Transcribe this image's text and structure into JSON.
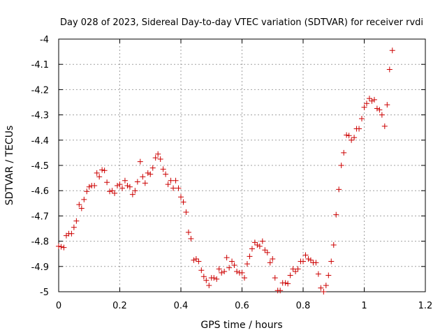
{
  "chart_data": {
    "type": "scatter",
    "title": "Day 028 of 2023, Sidereal Day-to-day VTEC variation (SDTVAR) for receiver rvdi",
    "xlabel": "GPS time / hours",
    "ylabel": "SDTVAR / TECUs",
    "xlim": [
      0,
      1.2
    ],
    "ylim": [
      -5,
      -4
    ],
    "xticks": [
      0,
      0.2,
      0.4,
      0.6,
      0.8,
      1,
      1.2
    ],
    "xtick_labels": [
      "0",
      "0.2",
      "0.4",
      "0.6",
      "0.8",
      "1",
      "1.2"
    ],
    "yticks": [
      -5,
      -4.9,
      -4.8,
      -4.7,
      -4.6,
      -4.5,
      -4.4,
      -4.3,
      -4.2,
      -4.1,
      -4
    ],
    "ytick_labels": [
      "-5",
      "-4.9",
      "-4.8",
      "-4.7",
      "-4.6",
      "-4.5",
      "-4.4",
      "-4.3",
      "-4.2",
      "-4.1",
      "-4"
    ],
    "grid": true,
    "marker": "+",
    "color": "#cc0000",
    "points": [
      [
        0.0,
        -4.82
      ],
      [
        0.008,
        -4.822
      ],
      [
        0.017,
        -4.825
      ],
      [
        0.025,
        -4.778
      ],
      [
        0.033,
        -4.77
      ],
      [
        0.042,
        -4.77
      ],
      [
        0.05,
        -4.745
      ],
      [
        0.058,
        -4.72
      ],
      [
        0.067,
        -4.655
      ],
      [
        0.075,
        -4.67
      ],
      [
        0.083,
        -4.635
      ],
      [
        0.092,
        -4.603
      ],
      [
        0.1,
        -4.585
      ],
      [
        0.108,
        -4.58
      ],
      [
        0.117,
        -4.58
      ],
      [
        0.125,
        -4.53
      ],
      [
        0.133,
        -4.545
      ],
      [
        0.142,
        -4.518
      ],
      [
        0.15,
        -4.52
      ],
      [
        0.158,
        -4.567
      ],
      [
        0.167,
        -4.603
      ],
      [
        0.175,
        -4.6
      ],
      [
        0.183,
        -4.61
      ],
      [
        0.192,
        -4.58
      ],
      [
        0.2,
        -4.575
      ],
      [
        0.208,
        -4.59
      ],
      [
        0.217,
        -4.56
      ],
      [
        0.225,
        -4.58
      ],
      [
        0.233,
        -4.585
      ],
      [
        0.242,
        -4.615
      ],
      [
        0.25,
        -4.6
      ],
      [
        0.258,
        -4.565
      ],
      [
        0.267,
        -4.485
      ],
      [
        0.275,
        -4.545
      ],
      [
        0.283,
        -4.57
      ],
      [
        0.292,
        -4.53
      ],
      [
        0.3,
        -4.535
      ],
      [
        0.308,
        -4.51
      ],
      [
        0.317,
        -4.47
      ],
      [
        0.325,
        -4.455
      ],
      [
        0.333,
        -4.475
      ],
      [
        0.342,
        -4.515
      ],
      [
        0.35,
        -4.535
      ],
      [
        0.358,
        -4.575
      ],
      [
        0.367,
        -4.56
      ],
      [
        0.375,
        -4.59
      ],
      [
        0.383,
        -4.56
      ],
      [
        0.392,
        -4.59
      ],
      [
        0.4,
        -4.625
      ],
      [
        0.408,
        -4.645
      ],
      [
        0.417,
        -4.685
      ],
      [
        0.425,
        -4.765
      ],
      [
        0.433,
        -4.79
      ],
      [
        0.442,
        -4.875
      ],
      [
        0.45,
        -4.87
      ],
      [
        0.458,
        -4.88
      ],
      [
        0.467,
        -4.915
      ],
      [
        0.475,
        -4.94
      ],
      [
        0.483,
        -4.955
      ],
      [
        0.492,
        -4.975
      ],
      [
        0.5,
        -4.945
      ],
      [
        0.508,
        -4.945
      ],
      [
        0.517,
        -4.95
      ],
      [
        0.525,
        -4.91
      ],
      [
        0.533,
        -4.925
      ],
      [
        0.542,
        -4.92
      ],
      [
        0.55,
        -4.865
      ],
      [
        0.558,
        -4.905
      ],
      [
        0.567,
        -4.88
      ],
      [
        0.575,
        -4.895
      ],
      [
        0.583,
        -4.92
      ],
      [
        0.592,
        -4.925
      ],
      [
        0.6,
        -4.925
      ],
      [
        0.608,
        -4.945
      ],
      [
        0.617,
        -4.89
      ],
      [
        0.625,
        -4.86
      ],
      [
        0.633,
        -4.83
      ],
      [
        0.642,
        -4.805
      ],
      [
        0.65,
        -4.815
      ],
      [
        0.658,
        -4.82
      ],
      [
        0.667,
        -4.8
      ],
      [
        0.675,
        -4.835
      ],
      [
        0.683,
        -4.845
      ],
      [
        0.692,
        -4.885
      ],
      [
        0.7,
        -4.87
      ],
      [
        0.708,
        -4.945
      ],
      [
        0.717,
        -4.995
      ],
      [
        0.725,
        -4.995
      ],
      [
        0.733,
        -4.965
      ],
      [
        0.742,
        -4.965
      ],
      [
        0.75,
        -4.968
      ],
      [
        0.758,
        -4.935
      ],
      [
        0.767,
        -4.91
      ],
      [
        0.775,
        -4.92
      ],
      [
        0.783,
        -4.91
      ],
      [
        0.792,
        -4.88
      ],
      [
        0.8,
        -4.88
      ],
      [
        0.808,
        -4.855
      ],
      [
        0.817,
        -4.87
      ],
      [
        0.825,
        -4.875
      ],
      [
        0.833,
        -4.885
      ],
      [
        0.842,
        -4.885
      ],
      [
        0.85,
        -4.93
      ],
      [
        0.858,
        -4.985
      ],
      [
        0.867,
        -5.0
      ],
      [
        0.875,
        -4.975
      ],
      [
        0.883,
        -4.935
      ],
      [
        0.892,
        -4.88
      ],
      [
        0.9,
        -4.815
      ],
      [
        0.908,
        -4.695
      ],
      [
        0.917,
        -4.595
      ],
      [
        0.925,
        -4.5
      ],
      [
        0.933,
        -4.45
      ],
      [
        0.942,
        -4.38
      ],
      [
        0.95,
        -4.382
      ],
      [
        0.958,
        -4.4
      ],
      [
        0.967,
        -4.39
      ],
      [
        0.975,
        -4.355
      ],
      [
        0.983,
        -4.355
      ],
      [
        0.992,
        -4.315
      ],
      [
        1.0,
        -4.27
      ],
      [
        1.008,
        -4.255
      ],
      [
        1.017,
        -4.235
      ],
      [
        1.025,
        -4.245
      ],
      [
        1.033,
        -4.24
      ],
      [
        1.042,
        -4.275
      ],
      [
        1.05,
        -4.28
      ],
      [
        1.058,
        -4.3
      ],
      [
        1.067,
        -4.345
      ],
      [
        1.075,
        -4.26
      ],
      [
        1.083,
        -4.12
      ],
      [
        1.092,
        -4.045
      ]
    ]
  }
}
